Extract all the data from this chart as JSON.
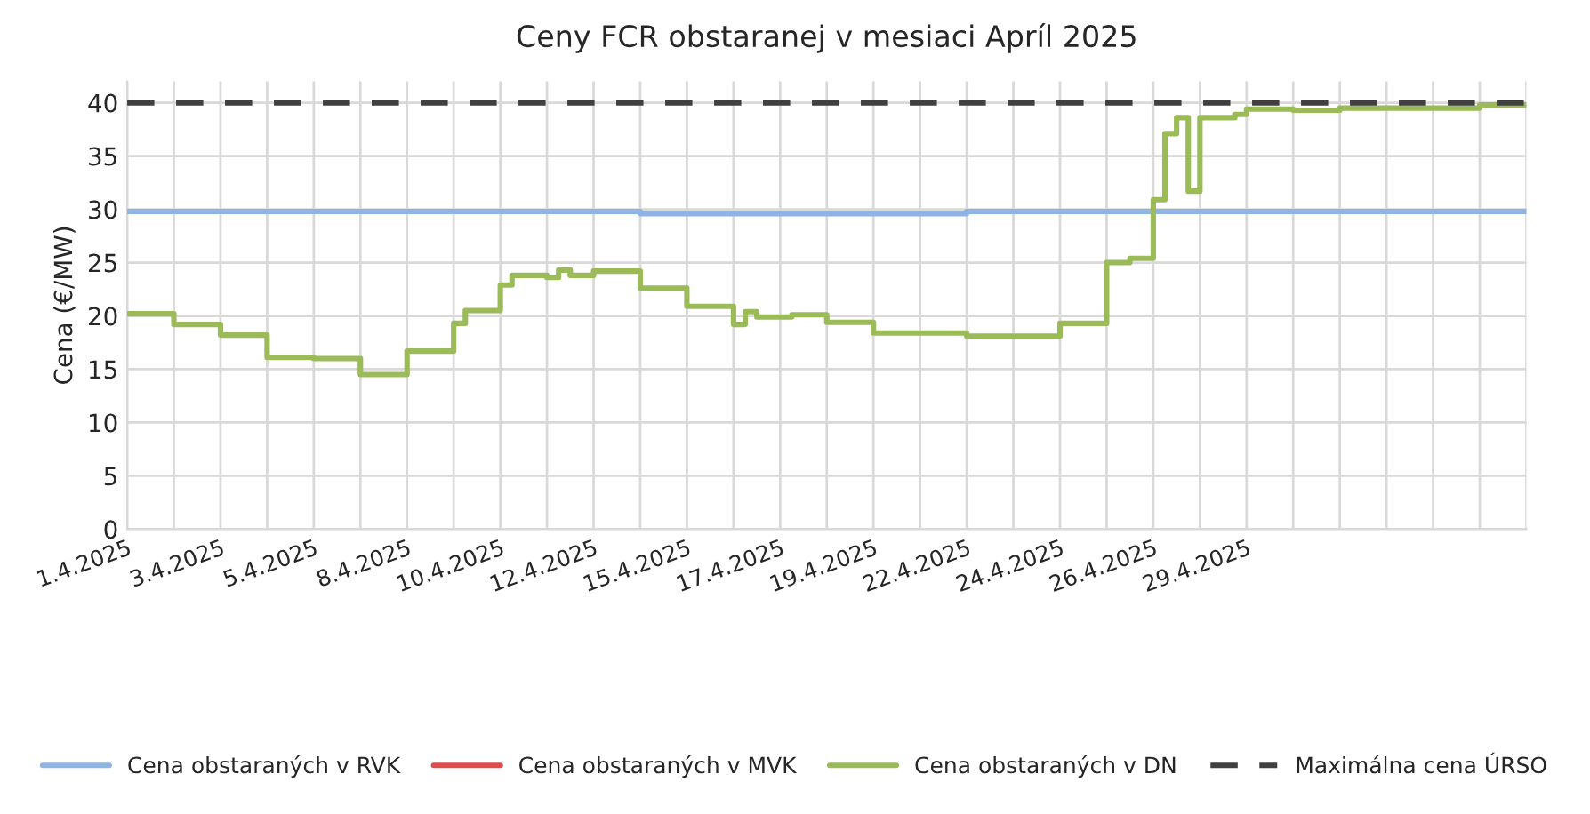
{
  "chart_data": {
    "type": "step",
    "title": "Ceny FCR obstaranej v mesiaci Apríl 2025",
    "ylabel": "Cena (€/MW)",
    "categories": [
      "1.4.2025",
      null,
      null,
      null,
      null,
      null,
      null,
      null,
      "3.4.2025",
      null,
      null,
      null,
      null,
      null,
      null,
      null,
      "5.4.2025",
      null,
      null,
      null,
      null,
      null,
      null,
      null,
      "8.4.2025",
      null,
      null,
      null,
      null,
      null,
      null,
      null,
      "10.4.2025",
      null,
      null,
      null,
      null,
      null,
      null,
      null,
      "12.4.2025",
      null,
      null,
      null,
      null,
      null,
      null,
      null,
      "15.4.2025",
      null,
      null,
      null,
      null,
      null,
      null,
      null,
      "17.4.2025",
      null,
      null,
      null,
      null,
      null,
      null,
      null,
      "19.4.2025",
      null,
      null,
      null,
      null,
      null,
      null,
      null,
      "22.4.2025",
      null,
      null,
      null,
      null,
      null,
      null,
      null,
      "24.4.2025",
      null,
      null,
      null,
      null,
      null,
      null,
      null,
      "26.4.2025",
      null,
      null,
      null,
      null,
      null,
      null,
      null,
      "29.4.2025",
      null,
      null,
      null,
      null,
      null,
      null,
      null,
      null,
      null,
      null,
      null,
      null,
      null,
      null,
      null,
      null,
      null,
      null,
      null,
      null,
      null,
      null,
      null,
      null
    ],
    "series": [
      {
        "name": "Cena obstaraných v RVK",
        "color": "#8eb4e3",
        "values": [
          29.8,
          29.8,
          29.8,
          29.8,
          29.8,
          29.8,
          29.8,
          29.8,
          29.8,
          29.8,
          29.8,
          29.8,
          29.8,
          29.8,
          29.8,
          29.8,
          29.8,
          29.8,
          29.8,
          29.8,
          29.8,
          29.8,
          29.8,
          29.8,
          29.8,
          29.8,
          29.8,
          29.8,
          29.8,
          29.8,
          29.8,
          29.8,
          29.8,
          29.8,
          29.8,
          29.8,
          29.8,
          29.8,
          29.8,
          29.8,
          29.8,
          29.8,
          29.8,
          29.8,
          29.6,
          29.6,
          29.6,
          29.6,
          29.6,
          29.6,
          29.6,
          29.6,
          29.6,
          29.6,
          29.6,
          29.6,
          29.6,
          29.6,
          29.6,
          29.6,
          29.6,
          29.6,
          29.6,
          29.6,
          29.6,
          29.6,
          29.6,
          29.6,
          29.6,
          29.6,
          29.6,
          29.6,
          29.8,
          29.8,
          29.8,
          29.8,
          29.8,
          29.8,
          29.8,
          29.8,
          29.8,
          29.8,
          29.8,
          29.8,
          29.8,
          29.8,
          29.8,
          29.8,
          29.8,
          29.8,
          29.8,
          29.8,
          29.8,
          29.8,
          29.8,
          29.8,
          29.8,
          29.8,
          29.8,
          29.8,
          29.8,
          29.8,
          29.8,
          29.8,
          29.8,
          29.8,
          29.8,
          29.8,
          29.8,
          29.8,
          29.8,
          29.8,
          29.8,
          29.8,
          29.8,
          29.8,
          29.8,
          29.8,
          29.8,
          29.8,
          29.8
        ]
      },
      {
        "name": "Cena obstaraných v MVK",
        "color": "#e04b4b",
        "values": [
          null,
          null,
          null,
          null,
          null,
          null,
          null,
          null,
          null,
          null,
          null,
          null,
          null,
          null,
          null,
          null,
          null,
          null,
          null,
          null,
          null,
          null,
          null,
          null,
          null,
          null,
          null,
          null,
          null,
          null,
          null,
          null,
          null,
          null,
          null,
          null,
          null,
          null,
          null,
          null,
          null,
          null,
          null,
          null,
          null,
          null,
          null,
          null,
          null,
          null,
          null,
          null,
          null,
          null,
          null,
          null,
          null,
          null,
          null,
          null,
          null,
          null,
          null,
          null,
          null,
          null,
          null,
          null,
          null,
          null,
          null,
          null,
          null,
          null,
          null,
          null,
          null,
          null,
          null,
          null,
          null,
          null,
          null,
          null,
          null,
          null,
          null,
          null,
          null,
          null,
          null,
          null,
          null,
          null,
          null,
          null,
          null,
          null,
          null,
          null,
          null,
          null,
          null,
          null,
          null,
          null,
          null,
          null,
          null,
          null,
          null,
          null,
          null,
          null,
          null,
          null,
          null,
          null,
          null,
          null,
          null
        ]
      },
      {
        "name": "Cena obstaraných v DN",
        "color": "#9bbb59",
        "values": [
          20.2,
          20.2,
          20.2,
          20.2,
          19.2,
          19.2,
          19.2,
          19.2,
          18.2,
          18.2,
          18.2,
          18.2,
          16.1,
          16.1,
          16.1,
          16.1,
          16.0,
          16.0,
          16.0,
          16.0,
          14.5,
          14.5,
          14.5,
          14.5,
          16.7,
          16.7,
          16.7,
          16.7,
          19.3,
          20.5,
          20.5,
          20.5,
          22.9,
          23.8,
          23.8,
          23.8,
          23.6,
          24.3,
          23.8,
          23.8,
          24.2,
          24.2,
          24.2,
          24.2,
          22.6,
          22.6,
          22.6,
          22.6,
          20.9,
          20.9,
          20.9,
          20.9,
          19.2,
          20.4,
          19.9,
          19.9,
          19.9,
          20.1,
          20.1,
          20.1,
          19.4,
          19.4,
          19.4,
          19.4,
          18.4,
          18.4,
          18.4,
          18.4,
          18.4,
          18.4,
          18.4,
          18.4,
          18.1,
          18.1,
          18.1,
          18.1,
          18.1,
          18.1,
          18.1,
          18.1,
          19.3,
          19.3,
          19.3,
          19.3,
          25.0,
          25.0,
          25.4,
          25.4,
          30.9,
          37.1,
          38.6,
          31.7,
          38.6,
          38.6,
          38.6,
          38.9,
          39.4,
          39.4,
          39.4,
          39.4,
          39.3,
          39.3,
          39.3,
          39.3,
          39.5,
          39.5,
          39.5,
          39.5,
          39.5,
          39.5,
          39.5,
          39.5,
          39.5,
          39.5,
          39.5,
          39.5,
          39.8,
          39.8,
          39.8,
          39.8,
          39.8
        ]
      },
      {
        "name": "Maximálna cena ÚRSO",
        "type": "line",
        "line_style": "dashed",
        "color": "#404040",
        "values": [
          40,
          40,
          40,
          40,
          40,
          40,
          40,
          40,
          40,
          40,
          40,
          40,
          40,
          40,
          40,
          40,
          40,
          40,
          40,
          40,
          40,
          40,
          40,
          40,
          40,
          40,
          40,
          40,
          40,
          40,
          40,
          40,
          40,
          40,
          40,
          40,
          40,
          40,
          40,
          40,
          40,
          40,
          40,
          40,
          40,
          40,
          40,
          40,
          40,
          40,
          40,
          40,
          40,
          40,
          40,
          40,
          40,
          40,
          40,
          40,
          40,
          40,
          40,
          40,
          40,
          40,
          40,
          40,
          40,
          40,
          40,
          40,
          40,
          40,
          40,
          40,
          40,
          40,
          40,
          40,
          40,
          40,
          40,
          40,
          40,
          40,
          40,
          40,
          40,
          40,
          40,
          40,
          40,
          40,
          40,
          40,
          40,
          40,
          40,
          40,
          40,
          40,
          40,
          40,
          40,
          40,
          40,
          40,
          40,
          40,
          40,
          40,
          40,
          40,
          40,
          40,
          40,
          40,
          40,
          40,
          40
        ]
      }
    ],
    "ylim": [
      0,
      42
    ],
    "yticks": [
      0,
      5,
      10,
      15,
      20,
      25,
      30,
      35,
      40
    ],
    "grid": true,
    "legend": "bottom"
  }
}
